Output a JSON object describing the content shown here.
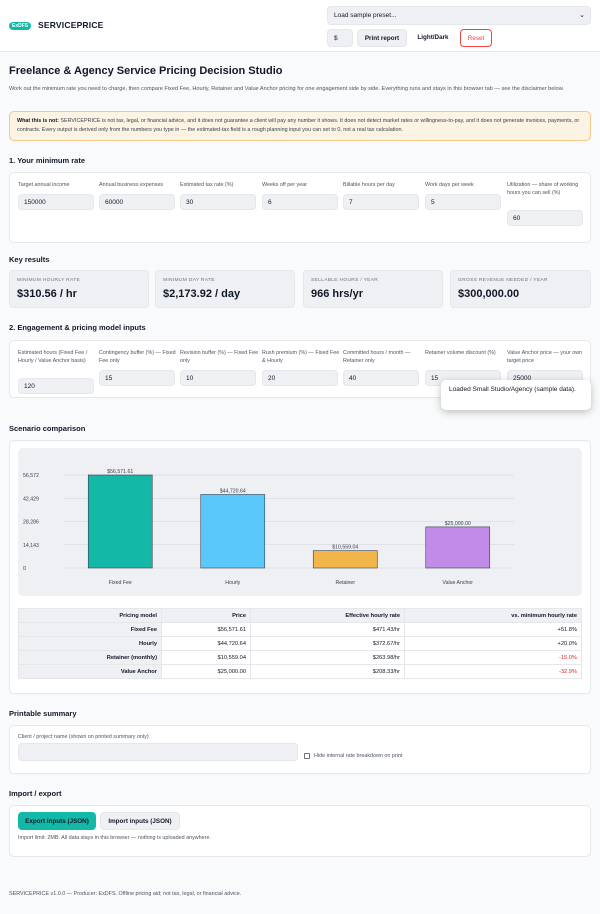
{
  "header": {
    "logo_badge": "ExDFS",
    "logo_text": "SERVICEPRICE",
    "preset_select": "Load sample preset...",
    "currency": "$",
    "print_label": "Print report",
    "theme_label": "Light/Dark",
    "reset_label": "Reset"
  },
  "page": {
    "title": "Freelance & Agency Service Pricing Decision Studio",
    "intro": "Work out the minimum rate you need to charge, then compare Fixed Fee, Hourly, Retainer and Value Anchor pricing for one engagement side by side. Everything runs and stays in this browser tab — see the disclaimer below.",
    "disclaimer_lead": "What this is not:",
    "disclaimer_body": " SERVICEPRICE is not tax, legal, or financial advice, and it does not guarantee a client will pay any number it shows. It does not detect market rates or willingness-to-pay, and it does not generate invoices, payments, or contracts. Every output is derived only from the numbers you type in — the estimated-tax field is a rough planning input you can set to 0, not a real tax calculation."
  },
  "minimum_rate": {
    "title": "1. Your minimum rate",
    "fields": [
      {
        "label": "Target annual income",
        "value": "150000"
      },
      {
        "label": "Annual business expenses",
        "value": "60000"
      },
      {
        "label": "Estimated tax rate (%)",
        "value": "30"
      },
      {
        "label": "Weeks off per year",
        "value": "6"
      },
      {
        "label": "Billable hours per day",
        "value": "7"
      },
      {
        "label": "Work days per week",
        "value": "5"
      },
      {
        "label": "Utilization — share of working hours you can sell (%)",
        "value": "60"
      }
    ]
  },
  "key_results": {
    "title": "Key results",
    "metrics": [
      {
        "label": "MINIMUM HOURLY RATE",
        "value": "$310.56 / hr"
      },
      {
        "label": "MINIMUM DAY RATE",
        "value": "$2,173.92 / day"
      },
      {
        "label": "SELLABLE HOURS / YEAR",
        "value": "966 hrs/yr"
      },
      {
        "label": "GROSS REVENUE NEEDED / YEAR",
        "value": "$300,000.00"
      }
    ]
  },
  "engagement": {
    "title": "2. Engagement & pricing model inputs",
    "fields": [
      {
        "label": "Estimated hours (Fixed Fee / Hourly / Value Anchor basis)",
        "value": "120"
      },
      {
        "label": "Contingency buffer (%) — Fixed Fee only",
        "value": "15"
      },
      {
        "label": "Revision buffer (%) — Fixed Fee only",
        "value": "10"
      },
      {
        "label": "Rush premium (%) — Fixed Fee & Hourly",
        "value": "20"
      },
      {
        "label": "Committed hours / month — Retainer only",
        "value": "40"
      },
      {
        "label": "Retainer volume discount (%)",
        "value": "15"
      },
      {
        "label": "Value Anchor price — your own target price",
        "value": "25000"
      }
    ]
  },
  "toast": {
    "message": "Loaded Small Studio/Agency (sample data)."
  },
  "scenario": {
    "title": "Scenario comparison",
    "table_headers": [
      "Pricing model",
      "Price",
      "Effective hourly rate",
      "vs. minimum hourly rate"
    ],
    "rows": [
      {
        "model": "Fixed Fee",
        "price": "$56,571.61",
        "rate": "$471.43/hr",
        "diff": "+51.8%"
      },
      {
        "model": "Hourly",
        "price": "$44,720.64",
        "rate": "$372.67/hr",
        "diff": "+20.0%"
      },
      {
        "model": "Retainer (monthly)",
        "price": "$10,559.04",
        "rate": "$263.98/hr",
        "diff": "-15.0%"
      },
      {
        "model": "Value Anchor",
        "price": "$25,000.00",
        "rate": "$208.33/hr",
        "diff": "-32.9%"
      }
    ]
  },
  "chart_data": {
    "type": "bar",
    "categories": [
      "Fixed Fee",
      "Hourly",
      "Retainer",
      "Value Anchor"
    ],
    "values": [
      56571.61,
      44720.64,
      10559.04,
      25000.0
    ],
    "value_labels": [
      "$56,571.61",
      "$44,720.64",
      "$10,559.04",
      "$25,000.00"
    ],
    "colors": [
      "#14b8a6",
      "#5ac8fa",
      "#f2b54a",
      "#c38be8"
    ],
    "yticks": [
      0,
      14143,
      28286,
      42429,
      56572
    ],
    "ytick_labels": [
      "0",
      "14,143",
      "28,286",
      "42,429",
      "56,572"
    ],
    "ylim": [
      0,
      56572
    ],
    "grid": true
  },
  "summary": {
    "title": "Printable summary",
    "client_label": "Client / project name (shown on printed summary only)",
    "client_value": "",
    "hide_label": "Hide internal rate breakdown on print"
  },
  "io": {
    "title": "Import / export",
    "export_label": "Export inputs (JSON)",
    "import_label": "Import inputs (JSON)",
    "note": "Import limit: 2MB. All data stays in this browser — nothing is uploaded anywhere."
  },
  "footer": "SERVICEPRICE v1.0.0 — Producer: ExDFS. Offline pricing aid; not tax, legal, or financial advice."
}
